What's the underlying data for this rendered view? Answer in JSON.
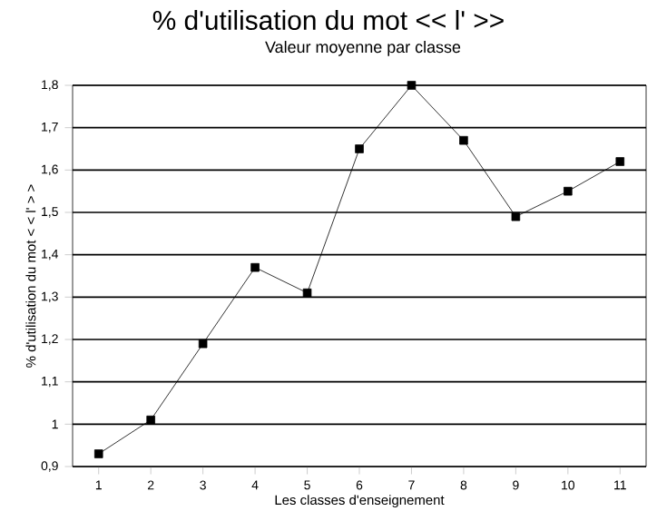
{
  "chart_data": {
    "type": "line",
    "title": "% d'utilisation du mot << l' >>",
    "subtitle": "Valeur moyenne par classe",
    "xlabel": "Les classes d'enseignement",
    "ylabel": "% d'utilisation du mot < < l' > >",
    "categories": [
      "1",
      "2",
      "3",
      "4",
      "5",
      "6",
      "7",
      "8",
      "9",
      "10",
      "11"
    ],
    "values": [
      0.93,
      1.01,
      1.19,
      1.37,
      1.31,
      1.65,
      1.8,
      1.67,
      1.49,
      1.55,
      1.62
    ],
    "color": "#000000",
    "ylim": [
      0.9,
      1.8
    ],
    "yticks": [
      {
        "value": 0.9,
        "label": "0,9"
      },
      1,
      {
        "value": 1.1,
        "label": "1,1"
      },
      {
        "value": 1.2,
        "label": "1,2"
      },
      {
        "value": 1.3,
        "label": "1,3"
      },
      {
        "value": 1.4,
        "label": "1,4"
      },
      {
        "value": 1.5,
        "label": "1,5"
      },
      {
        "value": 1.6,
        "label": "1,6"
      },
      {
        "value": 1.7,
        "label": "1,7"
      },
      {
        "value": 1.8,
        "label": "1,8"
      }
    ],
    "grid": "y",
    "marker": "square",
    "line_style": "solid"
  }
}
